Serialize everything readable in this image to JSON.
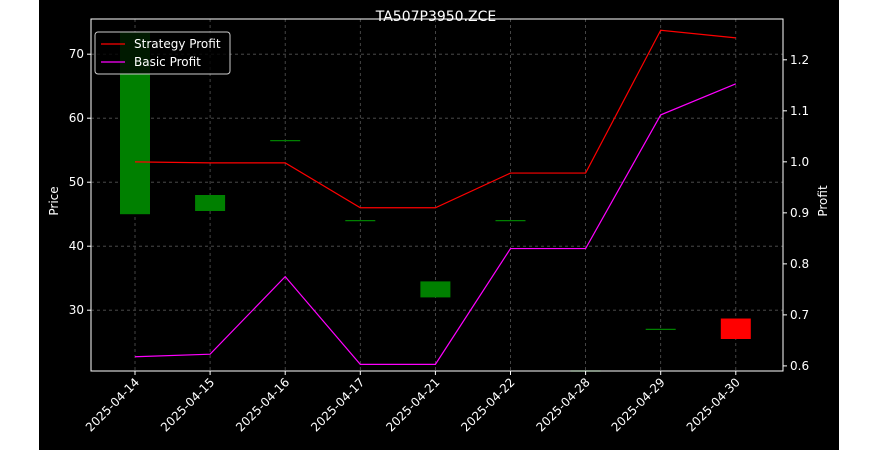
{
  "chart_data": {
    "type": "candlestick+line",
    "title": "TA507P3950.ZCE",
    "xlabel": "",
    "ylabel_left": "Price",
    "ylabel_right": "Profit",
    "categories": [
      "2025-04-14",
      "2025-04-15",
      "2025-04-16",
      "2025-04-17",
      "2025-04-21",
      "2025-04-22",
      "2025-04-28",
      "2025-04-29",
      "2025-04-30"
    ],
    "ylim_left": [
      20.5,
      75.5
    ],
    "ylim_right": [
      0.59,
      1.28
    ],
    "yticks_left": [
      30,
      40,
      50,
      60,
      70
    ],
    "yticks_right": [
      0.6,
      0.7,
      0.8,
      0.9,
      1.0,
      1.1,
      1.2
    ],
    "grid": true,
    "legend_position": "top-left",
    "candles": [
      {
        "open": 45.0,
        "close": 73.5,
        "high": 73.5,
        "low": 45.0
      },
      {
        "open": 45.5,
        "close": 48.0,
        "high": 48.0,
        "low": 45.5
      },
      {
        "open": 56.5,
        "close": 56.5,
        "high": 56.5,
        "low": 56.5
      },
      {
        "open": 44.0,
        "close": 44.0,
        "high": 44.0,
        "low": 44.0
      },
      {
        "open": 32.0,
        "close": 34.5,
        "high": 34.5,
        "low": 32.0
      },
      {
        "open": 44.0,
        "close": 44.0,
        "high": 44.0,
        "low": 44.0
      },
      {
        "open": 20.5,
        "close": 20.5,
        "high": 20.5,
        "low": 20.5
      },
      {
        "open": 27.0,
        "close": 27.0,
        "high": 27.0,
        "low": 27.0
      },
      {
        "open": 28.7,
        "close": 25.5,
        "high": 28.7,
        "low": 25.5
      }
    ],
    "series": [
      {
        "name": "Strategy Profit",
        "axis": "right",
        "color": "#ff0000",
        "values": [
          1.0,
          0.998,
          0.998,
          0.91,
          0.91,
          0.978,
          0.978,
          1.258,
          1.243
        ]
      },
      {
        "name": "Basic Profit",
        "axis": "right",
        "color": "#ff00ff",
        "values": [
          0.618,
          0.623,
          0.775,
          0.603,
          0.603,
          0.83,
          0.83,
          1.092,
          1.153
        ]
      }
    ],
    "colors": {
      "up": "#008000",
      "down": "#ff0000",
      "background": "#000000",
      "grid": "#555555"
    }
  }
}
